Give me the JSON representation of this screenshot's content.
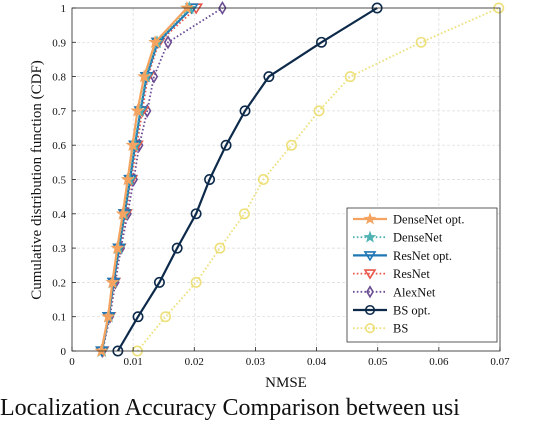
{
  "caption": "Localization Accuracy Comparison between usi",
  "chart_data": {
    "type": "line",
    "xlabel": "NMSE",
    "ylabel": "Cumulative distribution function (CDF)",
    "xlim": [
      0,
      0.07
    ],
    "ylim": [
      0,
      1
    ],
    "xticks": [
      "0",
      "0.01",
      "0.02",
      "0.03",
      "0.04",
      "0.05",
      "0.06",
      "0.07"
    ],
    "yticks": [
      "0",
      "0.1",
      "0.2",
      "0.3",
      "0.4",
      "0.5",
      "0.6",
      "0.7",
      "0.8",
      "0.9",
      "1"
    ],
    "grid": true,
    "legend_position": "lower-right",
    "series": [
      {
        "name": "DenseNet opt.",
        "color": "#f4a460",
        "line": "solid",
        "marker": "star",
        "x": [
          0.0048,
          0.0059,
          0.0066,
          0.0074,
          0.0083,
          0.0091,
          0.0099,
          0.0107,
          0.0118,
          0.0136,
          0.0188
        ],
        "y": [
          0,
          0.1,
          0.2,
          0.3,
          0.4,
          0.5,
          0.6,
          0.7,
          0.8,
          0.9,
          1
        ]
      },
      {
        "name": "DenseNet",
        "color": "#4fb3b3",
        "line": "dotted",
        "marker": "star",
        "x": [
          0.0049,
          0.006,
          0.0067,
          0.0076,
          0.0085,
          0.0094,
          0.0102,
          0.0111,
          0.0121,
          0.0139,
          0.0192
        ],
        "y": [
          0,
          0.1,
          0.2,
          0.3,
          0.4,
          0.5,
          0.6,
          0.7,
          0.8,
          0.9,
          1
        ]
      },
      {
        "name": "ResNet opt.",
        "color": "#1f77b4",
        "line": "solid",
        "marker": "triangle-down",
        "x": [
          0.0049,
          0.006,
          0.0068,
          0.0077,
          0.0086,
          0.0095,
          0.0103,
          0.0112,
          0.0122,
          0.014,
          0.0196
        ],
        "y": [
          0,
          0.1,
          0.2,
          0.3,
          0.4,
          0.5,
          0.6,
          0.7,
          0.8,
          0.9,
          1
        ]
      },
      {
        "name": "ResNet",
        "color": "#e8584a",
        "line": "dotted",
        "marker": "triangle-down",
        "x": [
          0.005,
          0.0061,
          0.0069,
          0.0078,
          0.0088,
          0.0097,
          0.0106,
          0.0115,
          0.0124,
          0.0142,
          0.0203
        ],
        "y": [
          0,
          0.1,
          0.2,
          0.3,
          0.4,
          0.5,
          0.6,
          0.7,
          0.8,
          0.9,
          1
        ]
      },
      {
        "name": "AlexNet",
        "color": "#6a4c93",
        "line": "dotted",
        "marker": "diamond",
        "x": [
          0.005,
          0.0062,
          0.0071,
          0.008,
          0.0091,
          0.0101,
          0.011,
          0.0123,
          0.0134,
          0.0157,
          0.0246
        ],
        "y": [
          0,
          0.1,
          0.2,
          0.3,
          0.4,
          0.5,
          0.6,
          0.7,
          0.8,
          0.9,
          1
        ]
      },
      {
        "name": "BS opt.",
        "color": "#0d2a4a",
        "line": "solid",
        "marker": "circle",
        "x": [
          0.0075,
          0.0108,
          0.0143,
          0.0172,
          0.0203,
          0.0225,
          0.0252,
          0.0283,
          0.0322,
          0.0408,
          0.0499
        ],
        "y": [
          0,
          0.1,
          0.2,
          0.3,
          0.4,
          0.5,
          0.6,
          0.7,
          0.8,
          0.9,
          1
        ]
      },
      {
        "name": "BS",
        "color": "#ede07a",
        "line": "dotted",
        "marker": "circle",
        "x": [
          0.0107,
          0.0153,
          0.0203,
          0.0242,
          0.0282,
          0.0313,
          0.0359,
          0.0404,
          0.0455,
          0.0571,
          0.0698
        ],
        "y": [
          0,
          0.1,
          0.2,
          0.3,
          0.4,
          0.5,
          0.6,
          0.7,
          0.8,
          0.9,
          1
        ]
      }
    ]
  }
}
